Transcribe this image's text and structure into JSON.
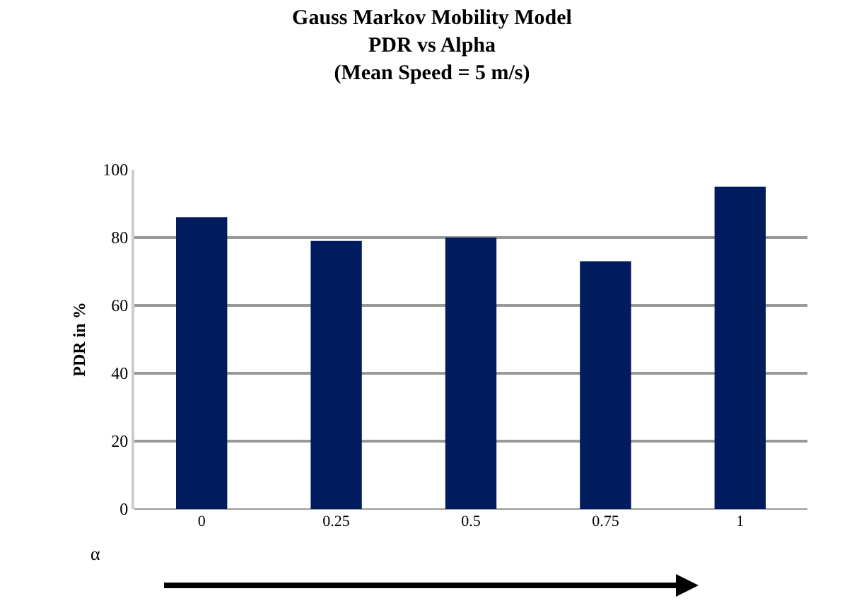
{
  "chart_data": {
    "type": "bar",
    "title": "Gauss Markov Mobility Model\nPDR vs Alpha\n(Mean Speed = 5 m/s)",
    "ylabel": "PDR in %",
    "annotations": [
      "α"
    ],
    "categories": [
      "0",
      "0.25",
      "0.5",
      "0.75",
      "1"
    ],
    "values": [
      86,
      79,
      80,
      73,
      95
    ],
    "color": "#001b5e",
    "ylim": [
      0,
      100
    ],
    "yticks": [
      0,
      20,
      40,
      60,
      80,
      100
    ],
    "grid": "y",
    "legend": false
  }
}
